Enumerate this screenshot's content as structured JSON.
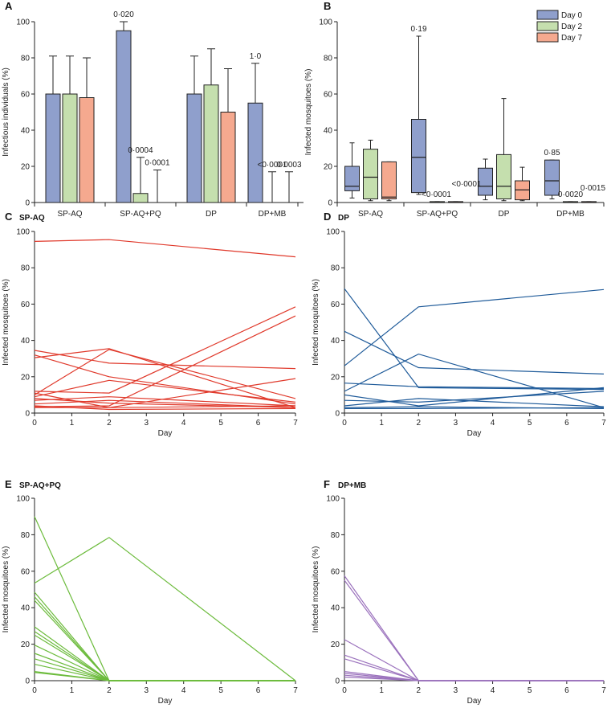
{
  "colors": {
    "day0": "#8f9fcc",
    "day2": "#c5dfae",
    "day7": "#f5a98f",
    "sp_aq": "#e0392b",
    "dp": "#1e5a99",
    "sp_aq_pq": "#6cbb3c",
    "dp_mb": "#9b72bd"
  },
  "legend": [
    "Day 0",
    "Day 2",
    "Day 7"
  ],
  "chart_data": [
    {
      "panel": "A",
      "type": "bar",
      "title": "",
      "ylabel": "Infectious individuals (%)",
      "ylim": [
        0,
        100
      ],
      "yticks": [
        "0",
        "20",
        "40",
        "60",
        "80",
        "100"
      ],
      "categories": [
        "SP-AQ",
        "SP-AQ+PQ",
        "DP",
        "DP+MB"
      ],
      "series": [
        {
          "name": "Day 0",
          "values": [
            60,
            95,
            60,
            55
          ],
          "err_low": [
            37,
            76,
            37,
            33
          ],
          "err_high": [
            81,
            100,
            81,
            77
          ]
        },
        {
          "name": "Day 2",
          "values": [
            60,
            5,
            65,
            0
          ],
          "err_low": [
            37,
            0,
            45,
            0
          ],
          "err_high": [
            81,
            25,
            85,
            17
          ]
        },
        {
          "name": "Day 7",
          "values": [
            58,
            0,
            50,
            0
          ],
          "err_low": [
            33,
            0,
            27,
            0
          ],
          "err_high": [
            80,
            18,
            74,
            17
          ]
        }
      ],
      "annotations": [
        {
          "group": 1,
          "series": 0,
          "text": "0·020",
          "y": 100
        },
        {
          "group": 1,
          "series": 1,
          "text": "0·0004",
          "y": 25
        },
        {
          "group": 1,
          "series": 2,
          "text": "0·0001",
          "y": 18
        },
        {
          "group": 3,
          "series": 0,
          "text": "1·0",
          "y": 77
        },
        {
          "group": 3,
          "series": 1,
          "text": "<0·0001",
          "y": 17
        },
        {
          "group": 3,
          "series": 2,
          "text": "0·0003",
          "y": 17
        }
      ]
    },
    {
      "panel": "B",
      "type": "box",
      "title": "",
      "ylabel": "Infected mosquitoes (%)",
      "ylim": [
        0,
        100
      ],
      "yticks": [
        "0",
        "20",
        "40",
        "60",
        "80",
        "100"
      ],
      "categories": [
        "SP-AQ",
        "SP-AQ+PQ",
        "DP",
        "DP+MB"
      ],
      "series": [
        {
          "name": "Day 0",
          "boxes": [
            {
              "min": 2.5,
              "q1": 6.5,
              "median": 9,
              "q3": 20,
              "max": 33
            },
            {
              "min": 4.5,
              "q1": 5.5,
              "median": 25,
              "q3": 46,
              "max": 92
            },
            {
              "min": 1.5,
              "q1": 4,
              "median": 9,
              "q3": 19,
              "max": 24
            },
            {
              "min": 2,
              "q1": 4,
              "median": 12,
              "q3": 23.5,
              "max": 23.5
            }
          ]
        },
        {
          "name": "Day 2",
          "boxes": [
            {
              "min": 1,
              "q1": 2,
              "median": 14,
              "q3": 29.5,
              "max": 34.5
            },
            {
              "min": 0,
              "q1": 0,
              "median": 0,
              "q3": 0.5,
              "max": 0.5
            },
            {
              "min": 1,
              "q1": 2,
              "median": 9,
              "q3": 26.5,
              "max": 57.5
            },
            {
              "min": 0,
              "q1": 0,
              "median": 0,
              "q3": 0.5,
              "max": 0.5
            }
          ]
        },
        {
          "name": "Day 7",
          "boxes": [
            {
              "min": 1,
              "q1": 2,
              "median": 3,
              "q3": 22.5,
              "max": 22.5
            },
            {
              "min": 0,
              "q1": 0,
              "median": 0,
              "q3": 0.5,
              "max": 0.5
            },
            {
              "min": 1,
              "q1": 1.5,
              "median": 7,
              "q3": 12,
              "max": 19.5
            },
            {
              "min": 0,
              "q1": 0,
              "median": 0,
              "q3": 0.5,
              "max": 0.5
            }
          ]
        }
      ],
      "annotations": [
        {
          "group": 1,
          "series": 0,
          "text": "0·19",
          "y": 92
        },
        {
          "group": 1,
          "series": 1,
          "text": "<0·0001",
          "y": 0.5
        },
        {
          "group": 1,
          "series": 2,
          "text": "<0·0001",
          "y": 9
        },
        {
          "group": 3,
          "series": 0,
          "text": "0·85",
          "y": 23.5
        },
        {
          "group": 3,
          "series": 1,
          "text": "0·0020",
          "y": 0.5
        },
        {
          "group": 3,
          "series": 2,
          "text": "0·0015",
          "y": 0.5
        }
      ]
    },
    {
      "panel": "C",
      "type": "line",
      "title": "SP-AQ",
      "color": "sp_aq",
      "xlabel": "Day",
      "ylabel": "Infected mosquitoes (%)",
      "xlim": [
        0,
        7
      ],
      "ylim": [
        0,
        100
      ],
      "xticks": [
        "0",
        "1",
        "2",
        "3",
        "4",
        "5",
        "6",
        "7"
      ],
      "yticks": [
        "0",
        "20",
        "40",
        "60",
        "80",
        "100"
      ],
      "x": [
        0,
        2,
        7
      ],
      "series": [
        [
          94.5,
          95.5,
          86
        ],
        [
          34.5,
          27.5,
          24.5
        ],
        [
          32,
          20,
          5
        ],
        [
          30.5,
          35.5,
          3
        ],
        [
          12,
          11,
          58.5
        ],
        [
          10,
          35,
          8
        ],
        [
          3.5,
          4,
          53.5
        ],
        [
          11,
          3,
          19
        ],
        [
          9,
          18,
          6
        ],
        [
          7,
          9,
          4
        ],
        [
          5,
          7,
          3
        ],
        [
          4,
          2,
          2.5
        ],
        [
          3,
          3,
          4
        ],
        [
          8,
          5.5,
          3
        ]
      ]
    },
    {
      "panel": "D",
      "type": "line",
      "title": "DP",
      "color": "dp",
      "xlabel": "Day",
      "ylabel": "Infected mosquitoes (%)",
      "xlim": [
        0,
        7
      ],
      "ylim": [
        0,
        100
      ],
      "xticks": [
        "0",
        "1",
        "2",
        "3",
        "4",
        "5",
        "6",
        "7"
      ],
      "yticks": [
        "0",
        "20",
        "40",
        "60",
        "80",
        "100"
      ],
      "x": [
        0,
        2,
        7
      ],
      "series": [
        [
          68.5,
          14,
          13
        ],
        [
          45,
          25,
          21.5
        ],
        [
          26,
          58.5,
          68
        ],
        [
          16.5,
          14.5,
          13.5
        ],
        [
          12,
          32.5,
          3
        ],
        [
          10,
          4,
          14
        ],
        [
          7,
          6,
          12
        ],
        [
          4,
          8,
          3.5
        ],
        [
          3,
          3.5,
          2.5
        ],
        [
          2.5,
          2.5,
          3
        ]
      ]
    },
    {
      "panel": "E",
      "type": "line",
      "title": "SP-AQ+PQ",
      "color": "sp_aq_pq",
      "xlabel": "Day",
      "ylabel": "Infected mosquitoes (%)",
      "xlim": [
        0,
        7
      ],
      "ylim": [
        0,
        100
      ],
      "xticks": [
        "0",
        "1",
        "2",
        "3",
        "4",
        "5",
        "6",
        "7"
      ],
      "yticks": [
        "0",
        "20",
        "40",
        "60",
        "80",
        "100"
      ],
      "x": [
        0,
        2,
        7
      ],
      "series": [
        [
          90,
          0,
          0
        ],
        [
          53.5,
          78.5,
          0
        ],
        [
          48.5,
          0,
          0
        ],
        [
          46,
          0,
          0
        ],
        [
          44,
          0,
          0
        ],
        [
          29.5,
          0,
          0
        ],
        [
          27,
          0,
          0
        ],
        [
          25,
          0,
          0
        ],
        [
          19.5,
          0,
          0
        ],
        [
          15,
          0,
          0
        ],
        [
          12,
          0,
          0
        ],
        [
          9,
          0,
          0
        ],
        [
          5,
          0,
          0
        ],
        [
          4.5,
          0,
          0
        ]
      ]
    },
    {
      "panel": "F",
      "type": "line",
      "title": "DP+MB",
      "color": "dp_mb",
      "xlabel": "Day",
      "ylabel": "Infected mosquitoes (%)",
      "xlim": [
        0,
        7
      ],
      "ylim": [
        0,
        100
      ],
      "xticks": [
        "0",
        "1",
        "2",
        "3",
        "4",
        "5",
        "6",
        "7"
      ],
      "yticks": [
        "0",
        "20",
        "40",
        "60",
        "80",
        "100"
      ],
      "x": [
        0,
        2,
        7
      ],
      "series": [
        [
          57.5,
          0,
          0
        ],
        [
          55,
          0,
          0
        ],
        [
          22.5,
          0,
          0
        ],
        [
          14,
          0,
          0
        ],
        [
          12,
          0,
          0
        ],
        [
          5,
          0,
          0
        ],
        [
          4,
          0,
          0
        ],
        [
          3,
          0,
          0
        ],
        [
          2,
          0,
          0
        ]
      ]
    }
  ]
}
